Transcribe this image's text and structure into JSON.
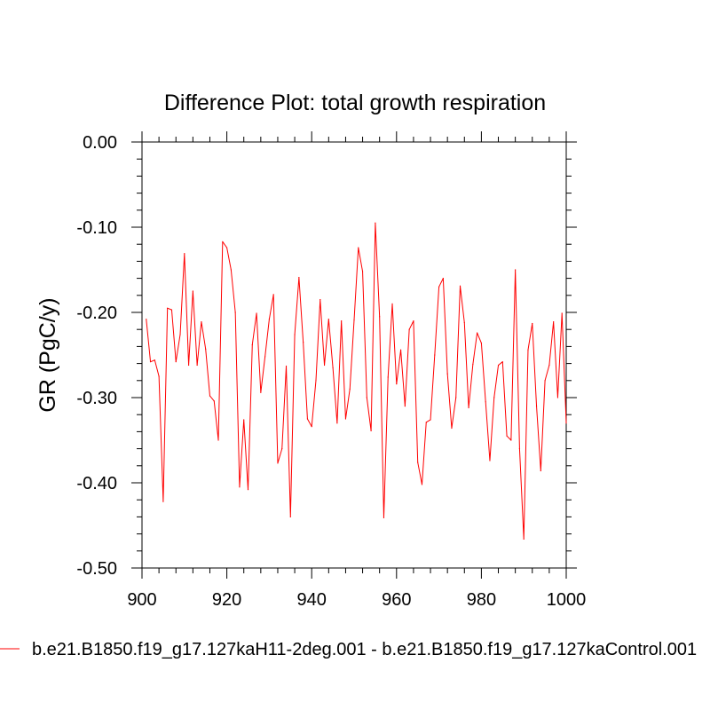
{
  "chart_data": {
    "type": "line",
    "title": "Difference Plot: total growth respiration",
    "xlabel": "",
    "ylabel": "GR  (PgC/y)",
    "xlim": [
      900,
      1000
    ],
    "ylim": [
      -0.5,
      0.0
    ],
    "x_ticks": [
      900,
      920,
      940,
      960,
      980,
      1000
    ],
    "x_tick_labels": [
      "900",
      "920",
      "940",
      "960",
      "980",
      "1000"
    ],
    "y_ticks": [
      0.0,
      -0.1,
      -0.2,
      -0.3,
      -0.4,
      -0.5
    ],
    "y_tick_labels": [
      "0.00",
      "-0.10",
      "-0.20",
      "-0.30",
      "-0.40",
      "-0.50"
    ],
    "grid": false,
    "legend_position": "bottom",
    "series": [
      {
        "name": "b.e21.B1850.f19_g17.127kaH11-2deg.001 - b.e21.B1850.f19_g17.127kaControl.001",
        "color": "#ff0000",
        "x": [
          901,
          902,
          903,
          904,
          905,
          906,
          907,
          908,
          909,
          910,
          911,
          912,
          913,
          914,
          915,
          916,
          917,
          918,
          919,
          920,
          921,
          922,
          923,
          924,
          925,
          926,
          927,
          928,
          929,
          930,
          931,
          932,
          933,
          934,
          935,
          936,
          937,
          938,
          939,
          940,
          941,
          942,
          943,
          944,
          945,
          946,
          947,
          948,
          949,
          950,
          951,
          952,
          953,
          954,
          955,
          956,
          957,
          958,
          959,
          960,
          961,
          962,
          963,
          964,
          965,
          966,
          967,
          968,
          969,
          970,
          971,
          972,
          973,
          974,
          975,
          976,
          977,
          978,
          979,
          980,
          981,
          982,
          983,
          984,
          985,
          986,
          987,
          988,
          989,
          990,
          991,
          992,
          993,
          994,
          995,
          996,
          997,
          998,
          999,
          1000
        ],
        "values": [
          -0.208,
          -0.258,
          -0.256,
          -0.275,
          -0.422,
          -0.195,
          -0.197,
          -0.258,
          -0.226,
          -0.131,
          -0.262,
          -0.175,
          -0.262,
          -0.211,
          -0.243,
          -0.298,
          -0.304,
          -0.35,
          -0.117,
          -0.124,
          -0.15,
          -0.2,
          -0.405,
          -0.326,
          -0.408,
          -0.238,
          -0.201,
          -0.294,
          -0.252,
          -0.208,
          -0.179,
          -0.377,
          -0.36,
          -0.263,
          -0.44,
          -0.226,
          -0.159,
          -0.235,
          -0.325,
          -0.334,
          -0.28,
          -0.185,
          -0.262,
          -0.208,
          -0.265,
          -0.33,
          -0.21,
          -0.325,
          -0.29,
          -0.209,
          -0.124,
          -0.152,
          -0.3,
          -0.339,
          -0.095,
          -0.205,
          -0.441,
          -0.276,
          -0.19,
          -0.284,
          -0.244,
          -0.31,
          -0.22,
          -0.21,
          -0.376,
          -0.402,
          -0.329,
          -0.326,
          -0.25,
          -0.17,
          -0.16,
          -0.272,
          -0.336,
          -0.3,
          -0.169,
          -0.212,
          -0.312,
          -0.261,
          -0.224,
          -0.236,
          -0.305,
          -0.374,
          -0.3,
          -0.262,
          -0.258,
          -0.345,
          -0.35,
          -0.15,
          -0.36,
          -0.466,
          -0.244,
          -0.213,
          -0.31,
          -0.386,
          -0.28,
          -0.262,
          -0.211,
          -0.3,
          -0.201,
          -0.33
        ]
      }
    ]
  }
}
